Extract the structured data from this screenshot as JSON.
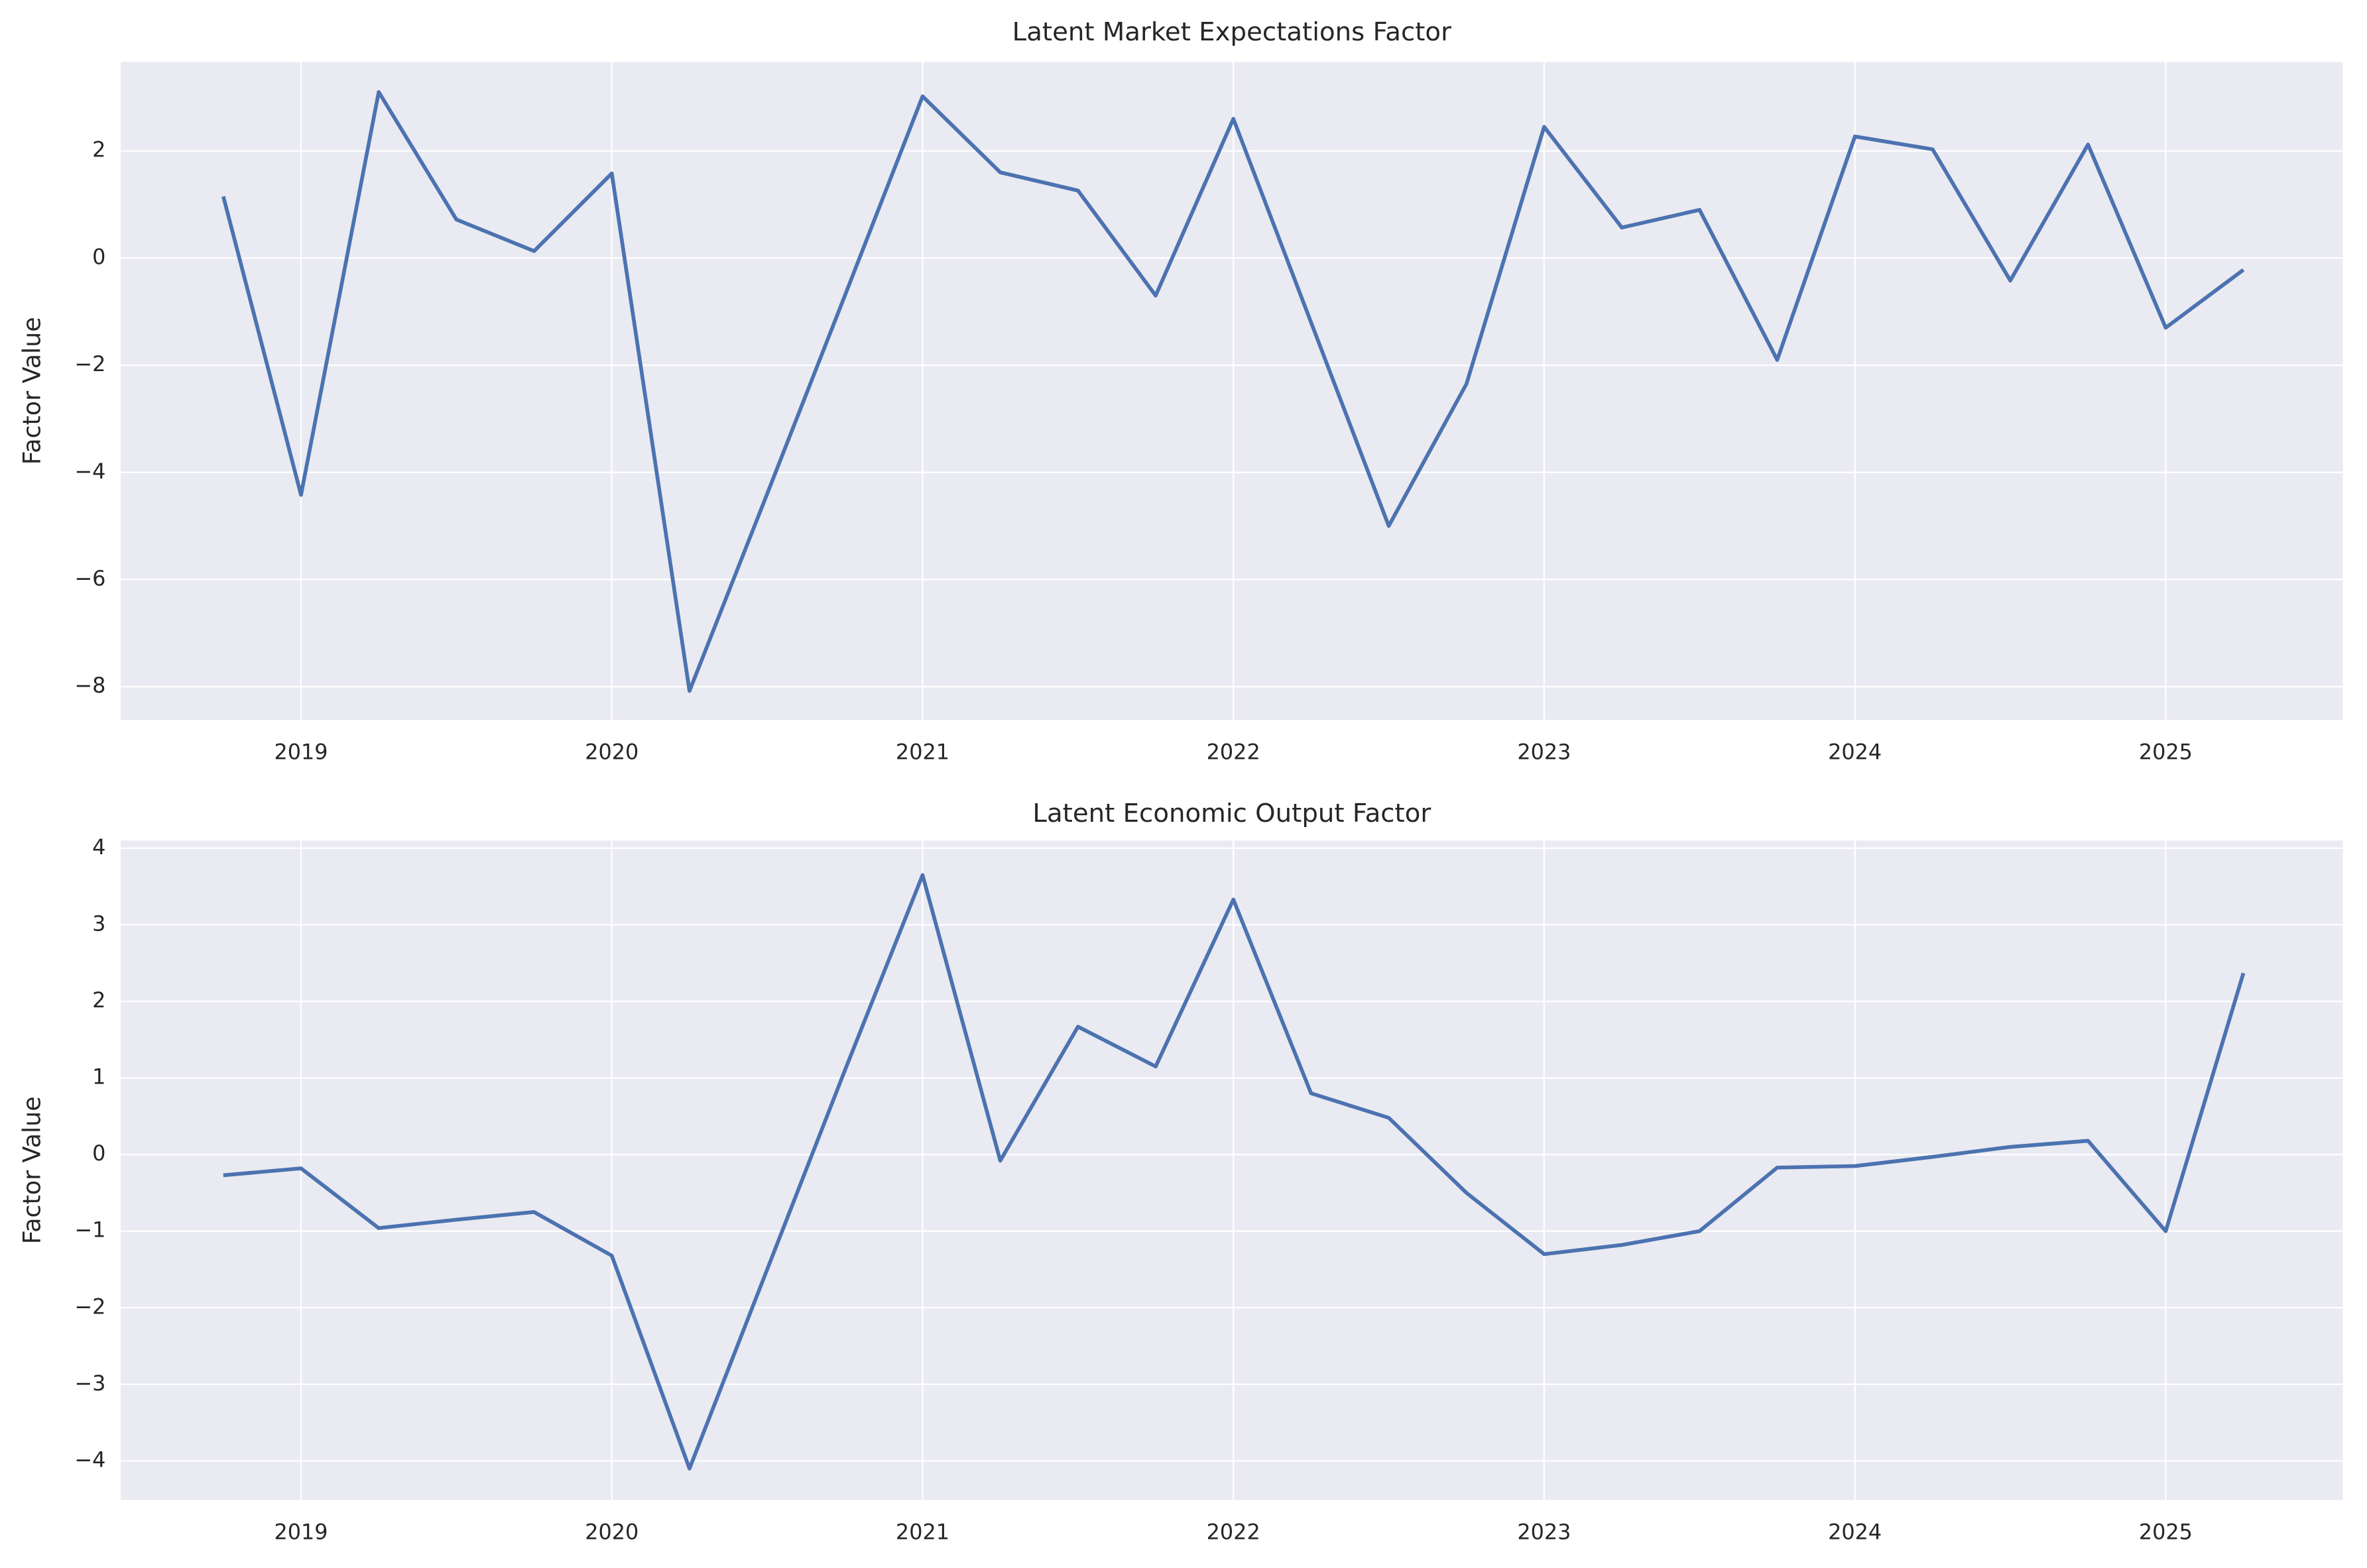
{
  "chart_data": [
    {
      "type": "line",
      "title": "Latent Market Expectations Factor",
      "ylabel": "Factor Value",
      "x": [
        2018.75,
        2019.0,
        2019.25,
        2019.5,
        2019.75,
        2020.0,
        2020.25,
        2020.5,
        2020.75,
        2021.0,
        2021.25,
        2021.5,
        2021.75,
        2022.0,
        2022.25,
        2022.5,
        2022.75,
        2023.0,
        2023.25,
        2023.5,
        2023.75,
        2024.0,
        2024.25,
        2024.5,
        2024.75,
        2025.0,
        2025.25
      ],
      "values": [
        1.15,
        -4.42,
        3.1,
        0.72,
        0.13,
        1.58,
        -8.08,
        -4.4,
        -0.7,
        3.02,
        1.6,
        1.26,
        -0.7,
        2.6,
        -1.2,
        -5.0,
        -2.35,
        2.45,
        0.57,
        0.9,
        -1.9,
        2.27,
        2.03,
        -0.42,
        2.12,
        -1.3,
        -0.22
      ],
      "color": "#4c72b0",
      "grid": true,
      "xlim": [
        2018.42,
        2025.57
      ],
      "xticks": [
        2019,
        2020,
        2021,
        2022,
        2023,
        2024,
        2025
      ],
      "ylim": [
        -8.62,
        3.66
      ],
      "yticks": [
        {
          "value": -8,
          "label": "−8"
        },
        {
          "value": -6,
          "label": "−6"
        },
        {
          "value": -4,
          "label": "−4"
        },
        {
          "value": -2,
          "label": "−2"
        },
        0,
        2
      ]
    },
    {
      "type": "line",
      "title": "Latent Economic Output Factor",
      "ylabel": "Factor Value",
      "x": [
        2018.75,
        2019.0,
        2019.25,
        2019.5,
        2019.75,
        2020.0,
        2020.25,
        2020.5,
        2020.75,
        2021.0,
        2021.25,
        2021.5,
        2021.75,
        2022.0,
        2022.25,
        2022.5,
        2022.75,
        2023.0,
        2023.25,
        2023.5,
        2023.75,
        2024.0,
        2024.25,
        2024.5,
        2024.75,
        2025.0,
        2025.25
      ],
      "values": [
        -0.27,
        -0.18,
        -0.96,
        -0.85,
        -0.75,
        -1.32,
        -4.1,
        -1.5,
        1.1,
        3.65,
        -0.08,
        1.67,
        1.15,
        3.33,
        0.8,
        0.48,
        -0.5,
        -1.3,
        -1.18,
        -1.0,
        -0.17,
        -0.15,
        -0.03,
        0.1,
        0.18,
        -1.0,
        2.37
      ],
      "color": "#4c72b0",
      "grid": true,
      "xlim": [
        2018.42,
        2025.57
      ],
      "xticks": [
        2019,
        2020,
        2021,
        2022,
        2023,
        2024,
        2025
      ],
      "ylim": [
        -4.51,
        4.1
      ],
      "yticks": [
        {
          "value": -4,
          "label": "−4"
        },
        {
          "value": -3,
          "label": "−3"
        },
        {
          "value": -2,
          "label": "−2"
        },
        {
          "value": -1,
          "label": "−1"
        },
        0,
        1,
        2,
        3,
        4
      ]
    }
  ]
}
